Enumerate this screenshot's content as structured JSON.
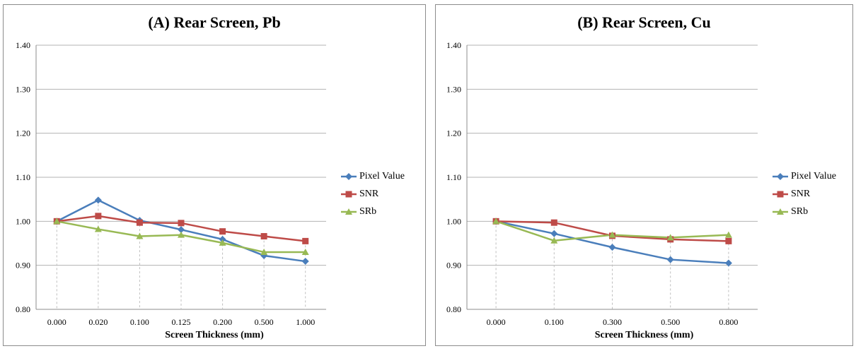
{
  "chart_data": [
    {
      "type": "line",
      "title": "(A) Rear Screen, Pb",
      "xlabel": "Screen Thickness (mm)",
      "categories": [
        "0.000",
        "0.020",
        "0.100",
        "0.125",
        "0.200",
        "0.500",
        "1.000"
      ],
      "yticks": [
        "0.80",
        "0.90",
        "1.00",
        "1.10",
        "1.20",
        "1.30",
        "1.40"
      ],
      "ylim": [
        0.8,
        1.4
      ],
      "grid": true,
      "legend_position": "right",
      "series": [
        {
          "name": "Pixel Value",
          "color": "#4a7ebb",
          "marker": "diamond",
          "values": [
            1.0,
            1.048,
            1.002,
            0.981,
            0.959,
            0.922,
            0.909
          ]
        },
        {
          "name": "SNR",
          "color": "#be4b48",
          "marker": "square",
          "values": [
            1.0,
            1.012,
            0.997,
            0.996,
            0.977,
            0.966,
            0.955
          ]
        },
        {
          "name": "SRb",
          "color": "#98b954",
          "marker": "triangle",
          "values": [
            1.0,
            0.982,
            0.966,
            0.969,
            0.951,
            0.93,
            0.93
          ]
        }
      ]
    },
    {
      "type": "line",
      "title": "(B) Rear Screen, Cu",
      "xlabel": "Screen Thickness (mm)",
      "categories": [
        "0.000",
        "0.100",
        "0.300",
        "0.500",
        "0.800"
      ],
      "yticks": [
        "0.80",
        "0.90",
        "1.00",
        "1.10",
        "1.20",
        "1.30",
        "1.40"
      ],
      "ylim": [
        0.8,
        1.4
      ],
      "grid": true,
      "legend_position": "right",
      "series": [
        {
          "name": "Pixel Value",
          "color": "#4a7ebb",
          "marker": "diamond",
          "values": [
            1.0,
            0.972,
            0.941,
            0.913,
            0.905
          ]
        },
        {
          "name": "SNR",
          "color": "#be4b48",
          "marker": "square",
          "values": [
            1.0,
            0.997,
            0.967,
            0.959,
            0.955
          ]
        },
        {
          "name": "SRb",
          "color": "#98b954",
          "marker": "triangle",
          "values": [
            1.0,
            0.956,
            0.969,
            0.963,
            0.969
          ]
        }
      ]
    }
  ]
}
